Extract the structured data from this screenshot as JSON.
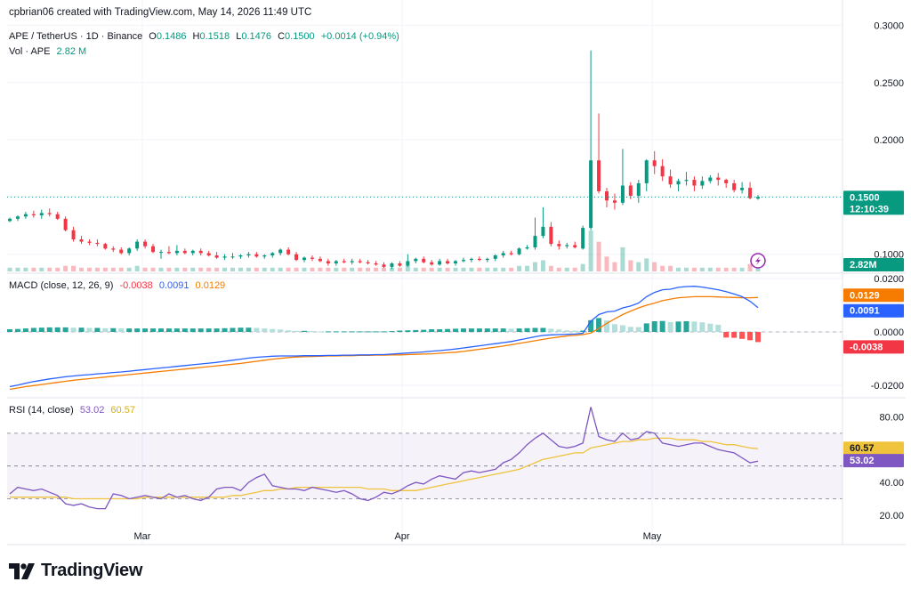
{
  "credit": "cpbrian06 created with TradingView.com, May 14, 2026 11:49 UTC",
  "symbol_line": {
    "name": "APE / TetherUS · 1D · Binance",
    "o_label": "O",
    "o": "0.1486",
    "h_label": "H",
    "h": "0.1518",
    "l_label": "L",
    "l": "0.1476",
    "c_label": "C",
    "c": "0.1500",
    "change": "+0.0014 (+0.94%)"
  },
  "volume_line": {
    "label": "Vol · APE",
    "value": "2.82 M"
  },
  "macd_line": {
    "label": "MACD (close, 12, 26, 9)",
    "hist": "-0.0038",
    "macd": "0.0091",
    "signal": "0.0129"
  },
  "rsi_line": {
    "label": "RSI (14, close)",
    "rsi": "53.02",
    "ma": "60.57"
  },
  "price_tag": {
    "price": "0.1500",
    "countdown": "12:10:39"
  },
  "volume_tag": "2.82M",
  "brand": "TradingView",
  "colors": {
    "up": "#089981",
    "down": "#f23645",
    "macd": "#2962ff",
    "signal": "#f57c00",
    "rsi": "#7e57c2",
    "rsi_ma": "#f0c33c"
  },
  "chart_data": {
    "type": "candlestick",
    "x_ticks": [
      "Mar",
      "Apr",
      "May"
    ],
    "price_axis": {
      "ticks": [
        "0.3000",
        "0.2500",
        "0.2000",
        "0.1500",
        "0.1000"
      ],
      "ylim": [
        0.085,
        0.305
      ]
    },
    "macd_axis": {
      "ticks": [
        "0.0200",
        "0.0000",
        "-0.0200"
      ],
      "ylim": [
        -0.024,
        0.021
      ]
    },
    "rsi_axis": {
      "ticks": [
        "80.00",
        "60.00",
        "40.00",
        "20.00"
      ],
      "ylim": [
        14,
        90
      ],
      "bands": [
        70,
        50,
        30
      ]
    },
    "ohlc": [
      [
        0.129,
        0.132,
        0.128,
        0.131
      ],
      [
        0.131,
        0.134,
        0.129,
        0.133
      ],
      [
        0.133,
        0.137,
        0.131,
        0.135
      ],
      [
        0.135,
        0.138,
        0.132,
        0.134
      ],
      [
        0.134,
        0.139,
        0.131,
        0.136
      ],
      [
        0.136,
        0.14,
        0.133,
        0.135
      ],
      [
        0.135,
        0.137,
        0.13,
        0.131
      ],
      [
        0.131,
        0.133,
        0.12,
        0.121
      ],
      [
        0.121,
        0.124,
        0.111,
        0.113
      ],
      [
        0.113,
        0.116,
        0.109,
        0.111
      ],
      [
        0.111,
        0.113,
        0.108,
        0.11
      ],
      [
        0.11,
        0.113,
        0.107,
        0.109
      ],
      [
        0.109,
        0.11,
        0.104,
        0.105
      ],
      [
        0.105,
        0.107,
        0.102,
        0.104
      ],
      [
        0.104,
        0.106,
        0.1,
        0.101
      ],
      [
        0.101,
        0.106,
        0.099,
        0.105
      ],
      [
        0.105,
        0.113,
        0.103,
        0.111
      ],
      [
        0.111,
        0.113,
        0.105,
        0.107
      ],
      [
        0.107,
        0.109,
        0.101,
        0.102
      ],
      [
        0.102,
        0.104,
        0.096,
        0.102
      ],
      [
        0.102,
        0.107,
        0.1,
        0.101
      ],
      [
        0.101,
        0.108,
        0.099,
        0.103
      ],
      [
        0.103,
        0.105,
        0.1,
        0.101
      ],
      [
        0.101,
        0.104,
        0.099,
        0.103
      ],
      [
        0.103,
        0.105,
        0.099,
        0.101
      ],
      [
        0.101,
        0.103,
        0.098,
        0.099
      ],
      [
        0.099,
        0.102,
        0.096,
        0.097
      ],
      [
        0.097,
        0.1,
        0.095,
        0.098
      ],
      [
        0.098,
        0.101,
        0.096,
        0.098
      ],
      [
        0.098,
        0.1,
        0.096,
        0.099
      ],
      [
        0.099,
        0.102,
        0.097,
        0.1
      ],
      [
        0.1,
        0.102,
        0.097,
        0.098
      ],
      [
        0.098,
        0.1,
        0.096,
        0.099
      ],
      [
        0.099,
        0.102,
        0.097,
        0.101
      ],
      [
        0.101,
        0.105,
        0.099,
        0.104
      ],
      [
        0.104,
        0.106,
        0.099,
        0.1
      ],
      [
        0.1,
        0.102,
        0.094,
        0.095
      ],
      [
        0.095,
        0.098,
        0.093,
        0.097
      ],
      [
        0.097,
        0.099,
        0.094,
        0.096
      ],
      [
        0.096,
        0.098,
        0.093,
        0.094
      ],
      [
        0.094,
        0.096,
        0.09,
        0.092
      ],
      [
        0.092,
        0.095,
        0.09,
        0.094
      ],
      [
        0.094,
        0.096,
        0.092,
        0.093
      ],
      [
        0.093,
        0.096,
        0.091,
        0.094
      ],
      [
        0.094,
        0.096,
        0.092,
        0.093
      ],
      [
        0.093,
        0.095,
        0.091,
        0.092
      ],
      [
        0.092,
        0.094,
        0.09,
        0.091
      ],
      [
        0.091,
        0.093,
        0.088,
        0.089
      ],
      [
        0.089,
        0.093,
        0.087,
        0.092
      ],
      [
        0.092,
        0.094,
        0.089,
        0.09
      ],
      [
        0.09,
        0.1,
        0.089,
        0.094
      ],
      [
        0.094,
        0.097,
        0.092,
        0.096
      ],
      [
        0.096,
        0.098,
        0.092,
        0.093
      ],
      [
        0.093,
        0.095,
        0.09,
        0.091
      ],
      [
        0.091,
        0.096,
        0.09,
        0.094
      ],
      [
        0.094,
        0.096,
        0.091,
        0.092
      ],
      [
        0.092,
        0.095,
        0.09,
        0.094
      ],
      [
        0.094,
        0.097,
        0.093,
        0.095
      ],
      [
        0.095,
        0.097,
        0.093,
        0.096
      ],
      [
        0.096,
        0.098,
        0.094,
        0.095
      ],
      [
        0.095,
        0.097,
        0.093,
        0.096
      ],
      [
        0.096,
        0.1,
        0.094,
        0.099
      ],
      [
        0.099,
        0.103,
        0.097,
        0.101
      ],
      [
        0.101,
        0.103,
        0.099,
        0.1
      ],
      [
        0.1,
        0.106,
        0.099,
        0.105
      ],
      [
        0.105,
        0.108,
        0.104,
        0.106
      ],
      [
        0.106,
        0.132,
        0.104,
        0.116
      ],
      [
        0.116,
        0.141,
        0.114,
        0.124
      ],
      [
        0.124,
        0.128,
        0.107,
        0.109
      ],
      [
        0.109,
        0.112,
        0.104,
        0.107
      ],
      [
        0.107,
        0.11,
        0.105,
        0.108
      ],
      [
        0.108,
        0.111,
        0.105,
        0.106
      ],
      [
        0.105,
        0.125,
        0.104,
        0.123
      ],
      [
        0.123,
        0.278,
        0.121,
        0.182
      ],
      [
        0.182,
        0.223,
        0.153,
        0.155
      ],
      [
        0.155,
        0.158,
        0.141,
        0.147
      ],
      [
        0.147,
        0.153,
        0.139,
        0.145
      ],
      [
        0.145,
        0.192,
        0.143,
        0.16
      ],
      [
        0.16,
        0.163,
        0.148,
        0.151
      ],
      [
        0.151,
        0.165,
        0.145,
        0.162
      ],
      [
        0.162,
        0.183,
        0.155,
        0.182
      ],
      [
        0.182,
        0.19,
        0.17,
        0.177
      ],
      [
        0.177,
        0.183,
        0.164,
        0.168
      ],
      [
        0.168,
        0.174,
        0.158,
        0.161
      ],
      [
        0.161,
        0.166,
        0.155,
        0.164
      ],
      [
        0.164,
        0.172,
        0.16,
        0.165
      ],
      [
        0.165,
        0.168,
        0.155,
        0.16
      ],
      [
        0.16,
        0.168,
        0.157,
        0.164
      ],
      [
        0.164,
        0.169,
        0.162,
        0.167
      ],
      [
        0.167,
        0.171,
        0.16,
        0.165
      ],
      [
        0.165,
        0.166,
        0.158,
        0.162
      ],
      [
        0.162,
        0.165,
        0.154,
        0.156
      ],
      [
        0.156,
        0.163,
        0.153,
        0.158
      ],
      [
        0.158,
        0.163,
        0.148,
        0.149
      ],
      [
        0.1486,
        0.1518,
        0.1476,
        0.15
      ]
    ],
    "volume": [
      0.2,
      0.2,
      0.2,
      0.2,
      0.2,
      0.2,
      0.2,
      0.3,
      0.3,
      0.2,
      0.2,
      0.2,
      0.2,
      0.2,
      0.2,
      0.2,
      0.3,
      0.2,
      0.2,
      0.2,
      0.2,
      0.2,
      0.2,
      0.2,
      0.2,
      0.2,
      0.2,
      0.2,
      0.2,
      0.2,
      0.2,
      0.2,
      0.2,
      0.2,
      0.2,
      0.2,
      0.2,
      0.2,
      0.2,
      0.2,
      0.2,
      0.2,
      0.2,
      0.2,
      0.2,
      0.2,
      0.2,
      0.2,
      0.2,
      0.2,
      0.3,
      0.2,
      0.2,
      0.2,
      0.2,
      0.2,
      0.2,
      0.2,
      0.2,
      0.2,
      0.2,
      0.2,
      0.2,
      0.2,
      0.3,
      0.3,
      0.5,
      0.6,
      0.3,
      0.2,
      0.2,
      0.2,
      0.4,
      2.2,
      1.6,
      0.8,
      0.5,
      1.3,
      0.6,
      0.5,
      0.7,
      0.5,
      0.3,
      0.3,
      0.2,
      0.2,
      0.2,
      0.2,
      0.2,
      0.2,
      0.2,
      0.2,
      0.2,
      0.4,
      0.5
    ],
    "macd_series": [
      -0.0205,
      -0.0199,
      -0.0192,
      -0.0186,
      -0.0181,
      -0.0176,
      -0.0172,
      -0.0168,
      -0.0165,
      -0.0162,
      -0.016,
      -0.0157,
      -0.0155,
      -0.0152,
      -0.015,
      -0.0147,
      -0.0144,
      -0.0141,
      -0.0138,
      -0.0135,
      -0.0132,
      -0.0129,
      -0.0126,
      -0.0123,
      -0.012,
      -0.0117,
      -0.0114,
      -0.011,
      -0.0106,
      -0.0102,
      -0.0098,
      -0.0095,
      -0.0093,
      -0.0091,
      -0.009,
      -0.009,
      -0.009,
      -0.0089,
      -0.0089,
      -0.0089,
      -0.0088,
      -0.0088,
      -0.0087,
      -0.0087,
      -0.0086,
      -0.0086,
      -0.0085,
      -0.0085,
      -0.0083,
      -0.0081,
      -0.0079,
      -0.0077,
      -0.0075,
      -0.0072,
      -0.007,
      -0.0067,
      -0.0064,
      -0.006,
      -0.0056,
      -0.0052,
      -0.0048,
      -0.0044,
      -0.004,
      -0.0036,
      -0.003,
      -0.0024,
      -0.0018,
      -0.0013,
      -0.0011,
      -0.001,
      -0.0009,
      -0.0008,
      -0.0005,
      0.004,
      0.0065,
      0.0075,
      0.0078,
      0.009,
      0.0097,
      0.0108,
      0.0132,
      0.0148,
      0.0158,
      0.016,
      0.0167,
      0.017,
      0.0171,
      0.0168,
      0.0163,
      0.0158,
      0.0151,
      0.0142,
      0.0132,
      0.0115,
      0.0091
    ],
    "signal_series": [
      -0.0215,
      -0.021,
      -0.0205,
      -0.0201,
      -0.0197,
      -0.0193,
      -0.0189,
      -0.0185,
      -0.0181,
      -0.0178,
      -0.0175,
      -0.0172,
      -0.0169,
      -0.0166,
      -0.0163,
      -0.016,
      -0.0157,
      -0.0154,
      -0.0151,
      -0.0148,
      -0.0145,
      -0.0142,
      -0.0139,
      -0.0136,
      -0.0133,
      -0.013,
      -0.0127,
      -0.0124,
      -0.0121,
      -0.0118,
      -0.0114,
      -0.011,
      -0.0106,
      -0.0102,
      -0.0099,
      -0.0096,
      -0.0094,
      -0.0093,
      -0.0092,
      -0.0091,
      -0.009,
      -0.009,
      -0.0089,
      -0.0089,
      -0.0088,
      -0.0088,
      -0.0087,
      -0.0087,
      -0.0086,
      -0.0086,
      -0.0085,
      -0.0084,
      -0.0083,
      -0.0082,
      -0.008,
      -0.0078,
      -0.0076,
      -0.0073,
      -0.0069,
      -0.0065,
      -0.0061,
      -0.0057,
      -0.0053,
      -0.0048,
      -0.0043,
      -0.0038,
      -0.0033,
      -0.0028,
      -0.0023,
      -0.0019,
      -0.0015,
      -0.0013,
      -0.001,
      -0.0004,
      0.0013,
      0.0032,
      0.0049,
      0.0065,
      0.0078,
      0.009,
      0.01,
      0.0108,
      0.0117,
      0.0123,
      0.0128,
      0.013,
      0.0132,
      0.0132,
      0.0132,
      0.0131,
      0.013,
      0.0129,
      0.0128,
      0.0128,
      0.0129
    ],
    "histogram": [
      0.001,
      0.0011,
      0.0013,
      0.0015,
      0.0016,
      0.0017,
      0.0017,
      0.0017,
      0.0016,
      0.0016,
      0.0015,
      0.0015,
      0.0014,
      0.0014,
      0.0013,
      0.0013,
      0.0013,
      0.0013,
      0.0013,
      0.0013,
      0.0013,
      0.0013,
      0.0013,
      0.0013,
      0.0013,
      0.0013,
      0.0013,
      0.0014,
      0.0015,
      0.0016,
      0.0016,
      0.0015,
      0.0013,
      0.0011,
      0.0009,
      0.0006,
      0.0004,
      0.0004,
      0.0003,
      0.0002,
      0.0002,
      0.0002,
      0.0002,
      0.0002,
      0.0002,
      0.0002,
      0.0002,
      0.0002,
      0.0003,
      0.0005,
      0.0006,
      0.0007,
      0.0008,
      0.001,
      0.001,
      0.0011,
      0.0012,
      0.0013,
      0.0013,
      0.0013,
      0.0013,
      0.0013,
      0.0013,
      0.0012,
      0.0013,
      0.0014,
      0.0015,
      0.0015,
      0.0012,
      0.0009,
      0.0006,
      0.0005,
      0.0005,
      0.0044,
      0.0052,
      0.0043,
      0.0029,
      0.0025,
      0.0019,
      0.0018,
      0.0032,
      0.004,
      0.0041,
      0.0037,
      0.0039,
      0.004,
      0.0039,
      0.0036,
      0.0031,
      0.0027,
      -0.0021,
      -0.0022,
      -0.0026,
      -0.0031,
      -0.0038
    ],
    "rsi_series": [
      33,
      37,
      36,
      35,
      36,
      34,
      32,
      27,
      26,
      27,
      25,
      24,
      24,
      33,
      32,
      30,
      31,
      32,
      31,
      30,
      33,
      31,
      32,
      30,
      29,
      31,
      36,
      37,
      37,
      35,
      40,
      43,
      45,
      38,
      37,
      36,
      36,
      35,
      37,
      36,
      35,
      34,
      35,
      33,
      30,
      29,
      31,
      34,
      33,
      35,
      38,
      40,
      39,
      42,
      44,
      43,
      42,
      46,
      47,
      46,
      47,
      48,
      52,
      54,
      58,
      63,
      67,
      70,
      66,
      62,
      61,
      62,
      64,
      86,
      68,
      66,
      65,
      70,
      66,
      67,
      71,
      70,
      64,
      63,
      62,
      63,
      64,
      64,
      62,
      60,
      59,
      58,
      55,
      52,
      53
    ],
    "rsi_ma_series": [
      31,
      31,
      31,
      31,
      31,
      31,
      31,
      31,
      30,
      30,
      30,
      30,
      30,
      30,
      30,
      30,
      30,
      31,
      31,
      31,
      31,
      31,
      31,
      31,
      31,
      31,
      31,
      31,
      32,
      32,
      33,
      34,
      35,
      35,
      36,
      36,
      37,
      37,
      37,
      37,
      37,
      37,
      37,
      37,
      37,
      36,
      36,
      36,
      35,
      35,
      35,
      35,
      36,
      37,
      38,
      39,
      40,
      41,
      42,
      43,
      44,
      45,
      46,
      47,
      48,
      50,
      52,
      54,
      55,
      56,
      57,
      58,
      58,
      61,
      62,
      63,
      64,
      65,
      65,
      66,
      66,
      67,
      67,
      67,
      66,
      66,
      66,
      65,
      65,
      64,
      63,
      63,
      62,
      61,
      60.57
    ]
  }
}
